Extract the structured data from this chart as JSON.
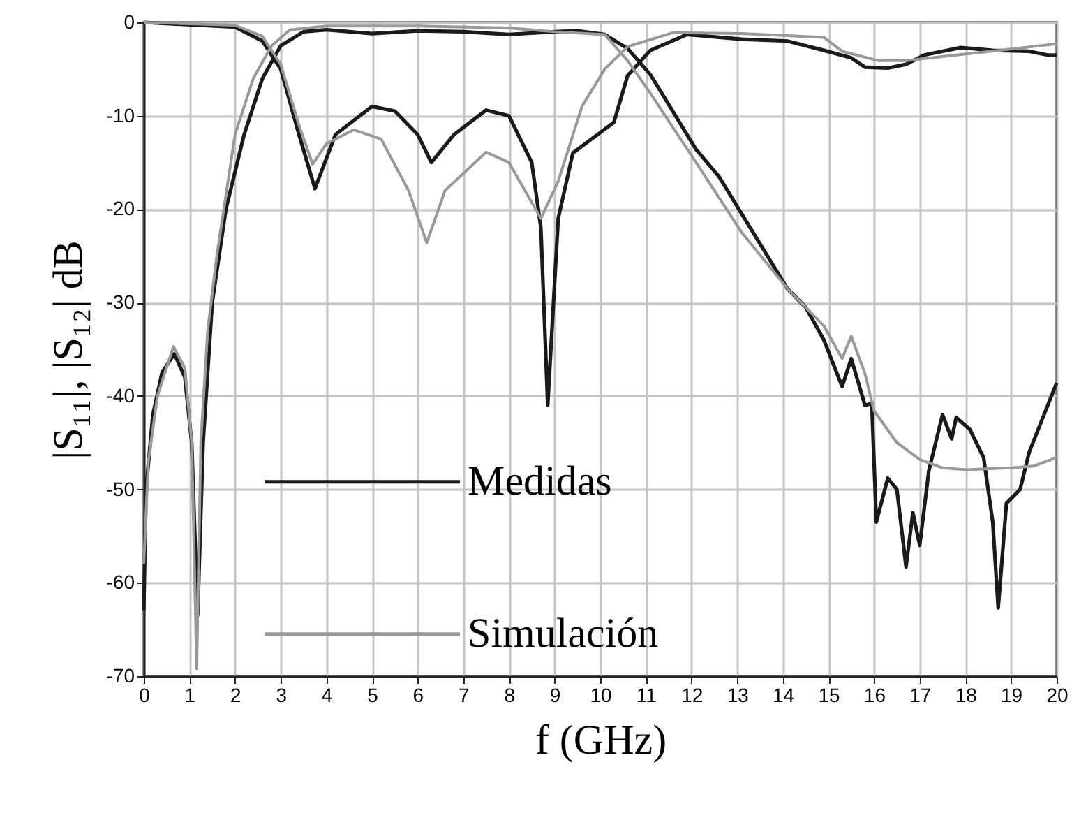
{
  "chart_data": {
    "type": "line",
    "xlabel": "f (GHz)",
    "ylabel": "|S₁₁|, |S₁₂| dB",
    "xlim": [
      0,
      20
    ],
    "xticks": [
      0,
      1,
      2,
      3,
      4,
      5,
      6,
      7,
      8,
      9,
      10,
      11,
      12,
      13,
      14,
      15,
      16,
      17,
      18,
      19,
      20
    ],
    "ylim": [
      -70,
      0
    ],
    "yticks": [
      -70,
      -60,
      -50,
      -40,
      -30,
      -20,
      -10,
      0
    ],
    "grid": true,
    "legend": "left",
    "marker": "none",
    "line_style": "solid",
    "series": [
      {
        "name": "Medidas",
        "color": "#1a1a1a",
        "x": [
          0,
          2,
          2.6,
          3,
          3.4,
          3.75,
          4.2,
          5,
          5.5,
          6,
          6.3,
          6.8,
          7.5,
          8,
          8.5,
          8.7,
          8.85,
          9.08,
          9.4,
          10,
          10.3,
          10.6,
          11.1,
          11.9,
          13.1,
          14.1,
          14.9,
          15.5,
          15.8,
          16.3,
          16.7,
          17.1,
          17.9,
          18.6,
          19.4,
          19.8,
          20
        ],
        "values": [
          0,
          -0.5,
          -2,
          -5,
          -12,
          -17.8,
          -12,
          -9,
          -9.5,
          -12,
          -15,
          -12,
          -9.4,
          -10,
          -15,
          -22,
          -41,
          -21,
          -14,
          -11.8,
          -10.7,
          -5.7,
          -3,
          -1.3,
          -1.8,
          -2,
          -3,
          -3.8,
          -4.8,
          -4.9,
          -4.5,
          -3.5,
          -2.7,
          -3,
          -3.1,
          -3.5,
          -3.5
        ]
      },
      {
        "color": "#1a1a1a",
        "x": [
          0,
          0.05,
          0.2,
          0.4,
          0.67,
          0.9,
          1.05,
          1.18,
          1.3,
          1.5,
          1.8,
          2.2,
          2.6,
          3,
          3.5,
          4,
          5,
          6,
          7,
          8,
          9,
          9.5,
          10.1,
          10.6,
          11.1,
          12.1,
          12.6,
          13.1,
          13.6,
          14.1,
          14.5,
          14.9,
          15.3,
          15.5,
          15.8,
          15.95,
          16.05,
          16.3,
          16.5,
          16.7,
          16.85,
          17,
          17.2,
          17.5,
          17.7,
          17.8,
          18.1,
          18.4,
          18.6,
          18.72,
          18.9,
          19.2,
          19.4,
          20
        ],
        "values": [
          -63,
          -50,
          -42,
          -37.5,
          -35.5,
          -38,
          -45,
          -63.5,
          -45,
          -30,
          -20,
          -12,
          -6,
          -2.5,
          -1,
          -0.8,
          -1.2,
          -0.9,
          -1,
          -1.3,
          -1,
          -0.9,
          -1.3,
          -2.8,
          -5.6,
          -13.6,
          -16.5,
          -20.5,
          -24.5,
          -28.5,
          -30.5,
          -34,
          -39,
          -36,
          -41,
          -40.8,
          -53.5,
          -48.8,
          -50,
          -58.3,
          -52.5,
          -56,
          -48,
          -42,
          -44.6,
          -42.3,
          -43.6,
          -46.6,
          -53.5,
          -62.7,
          -51.5,
          -50,
          -46,
          -38.6
        ]
      },
      {
        "name": "Simulación",
        "color": "#999999",
        "x": [
          0,
          2,
          2.6,
          3,
          3.4,
          3.7,
          4,
          4.6,
          5.2,
          5.8,
          6.2,
          6.6,
          7.5,
          8,
          8.7,
          9.08,
          9.6,
          10.1,
          10.6,
          11.6,
          13.1,
          14.9,
          15.3,
          16.1,
          16.7,
          17.6,
          19.1,
          20
        ],
        "values": [
          0,
          -0.3,
          -1.5,
          -4.5,
          -11,
          -15.2,
          -13,
          -11.5,
          -12.5,
          -18,
          -23.6,
          -18,
          -13.9,
          -15,
          -21,
          -17,
          -9,
          -5,
          -2.6,
          -1.1,
          -1.2,
          -1.6,
          -3.1,
          -4.1,
          -4.1,
          -3.6,
          -2.8,
          -2.3
        ]
      },
      {
        "color": "#999999",
        "x": [
          0,
          0.1,
          0.3,
          0.65,
          0.9,
          1.05,
          1.16,
          1.25,
          1.4,
          1.6,
          2,
          2.4,
          2.8,
          3.2,
          4,
          6,
          8,
          9,
          10.1,
          10.6,
          11.1,
          12.1,
          13.1,
          14.1,
          14.9,
          15.3,
          15.5,
          15.8,
          16,
          16.5,
          17,
          17.5,
          18,
          19,
          19.5,
          20
        ],
        "values": [
          -58,
          -47,
          -40,
          -34.7,
          -37,
          -45,
          -69.2,
          -45,
          -33,
          -25,
          -12,
          -6,
          -2.5,
          -0.8,
          -0.4,
          -0.4,
          -0.6,
          -1,
          -1.3,
          -4.1,
          -7.6,
          -15,
          -22.5,
          -28.5,
          -32.5,
          -36,
          -33.6,
          -37.6,
          -41.6,
          -45,
          -46.8,
          -47.7,
          -47.9,
          -47.7,
          -47.5,
          -46.6
        ]
      }
    ]
  }
}
